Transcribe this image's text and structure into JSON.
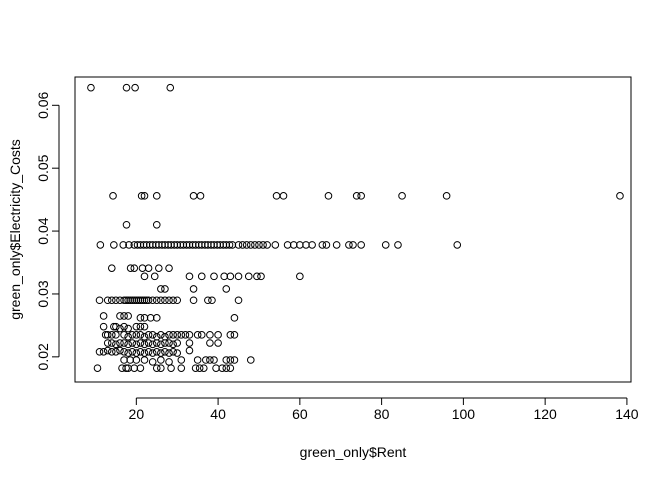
{
  "chart_data": {
    "type": "scatter",
    "xlabel": "green_only$Rent",
    "ylabel": "green_only$Electricity_Costs",
    "xlim": [
      5,
      141
    ],
    "ylim": [
      0.016,
      0.0645
    ],
    "x_ticks": [
      20,
      40,
      60,
      80,
      100,
      120,
      140
    ],
    "y_ticks": [
      0.02,
      0.03,
      0.04,
      0.05,
      0.06
    ],
    "x_tick_labels": [
      "20",
      "40",
      "60",
      "80",
      "100",
      "120",
      "140"
    ],
    "y_tick_labels": [
      "0.02",
      "0.03",
      "0.04",
      "0.05",
      "0.06"
    ],
    "grid": false,
    "marker": "open-circle",
    "point_color": "#000000",
    "points": [
      [
        8.9,
        0.0628
      ],
      [
        17.6,
        0.0628
      ],
      [
        19.7,
        0.0628
      ],
      [
        28.3,
        0.0628
      ],
      [
        14.3,
        0.0456
      ],
      [
        21.3,
        0.0456
      ],
      [
        22.0,
        0.0456
      ],
      [
        25.0,
        0.0456
      ],
      [
        34.0,
        0.0456
      ],
      [
        35.7,
        0.0456
      ],
      [
        54.3,
        0.0456
      ],
      [
        56.0,
        0.0456
      ],
      [
        67.0,
        0.0456
      ],
      [
        73.9,
        0.0456
      ],
      [
        75.0,
        0.0456
      ],
      [
        85.0,
        0.0456
      ],
      [
        95.9,
        0.0456
      ],
      [
        138.3,
        0.0456
      ],
      [
        17.6,
        0.041
      ],
      [
        25.0,
        0.041
      ],
      [
        11.2,
        0.0378
      ],
      [
        14.5,
        0.0378
      ],
      [
        16.8,
        0.0378
      ],
      [
        18.2,
        0.0378
      ],
      [
        19.5,
        0.0378
      ],
      [
        20.3,
        0.0378
      ],
      [
        21.0,
        0.0378
      ],
      [
        21.8,
        0.0378
      ],
      [
        22.5,
        0.0378
      ],
      [
        23.3,
        0.0378
      ],
      [
        24.0,
        0.0378
      ],
      [
        24.8,
        0.0378
      ],
      [
        25.5,
        0.0378
      ],
      [
        26.3,
        0.0378
      ],
      [
        27.0,
        0.0378
      ],
      [
        27.8,
        0.0378
      ],
      [
        28.5,
        0.0378
      ],
      [
        29.3,
        0.0378
      ],
      [
        30.0,
        0.0378
      ],
      [
        30.8,
        0.0378
      ],
      [
        31.5,
        0.0378
      ],
      [
        32.3,
        0.0378
      ],
      [
        33.0,
        0.0378
      ],
      [
        33.8,
        0.0378
      ],
      [
        34.5,
        0.0378
      ],
      [
        35.3,
        0.0378
      ],
      [
        36.0,
        0.0378
      ],
      [
        36.8,
        0.0378
      ],
      [
        37.5,
        0.0378
      ],
      [
        38.3,
        0.0378
      ],
      [
        39.0,
        0.0378
      ],
      [
        39.8,
        0.0378
      ],
      [
        40.5,
        0.0378
      ],
      [
        41.3,
        0.0378
      ],
      [
        42.0,
        0.0378
      ],
      [
        42.8,
        0.0378
      ],
      [
        43.5,
        0.0378
      ],
      [
        45.0,
        0.0378
      ],
      [
        46.0,
        0.0378
      ],
      [
        47.0,
        0.0378
      ],
      [
        48.0,
        0.0378
      ],
      [
        49.0,
        0.0378
      ],
      [
        50.0,
        0.0378
      ],
      [
        51.0,
        0.0378
      ],
      [
        52.0,
        0.0378
      ],
      [
        54.0,
        0.0378
      ],
      [
        57.0,
        0.0378
      ],
      [
        58.5,
        0.0378
      ],
      [
        60.0,
        0.0378
      ],
      [
        61.5,
        0.0378
      ],
      [
        63.0,
        0.0378
      ],
      [
        65.5,
        0.0378
      ],
      [
        66.5,
        0.0378
      ],
      [
        69.0,
        0.0378
      ],
      [
        72.0,
        0.0378
      ],
      [
        73.0,
        0.0378
      ],
      [
        75.0,
        0.0378
      ],
      [
        81.0,
        0.0378
      ],
      [
        84.0,
        0.0378
      ],
      [
        98.5,
        0.0378
      ],
      [
        14.0,
        0.0341
      ],
      [
        18.6,
        0.0341
      ],
      [
        19.5,
        0.0341
      ],
      [
        21.5,
        0.0341
      ],
      [
        23.0,
        0.0341
      ],
      [
        25.5,
        0.0341
      ],
      [
        28.0,
        0.0341
      ],
      [
        22.0,
        0.0328
      ],
      [
        24.5,
        0.0328
      ],
      [
        33.0,
        0.0328
      ],
      [
        36.0,
        0.0328
      ],
      [
        39.0,
        0.0328
      ],
      [
        41.5,
        0.0328
      ],
      [
        43.0,
        0.0328
      ],
      [
        45.0,
        0.0328
      ],
      [
        47.5,
        0.0328
      ],
      [
        49.5,
        0.0328
      ],
      [
        50.5,
        0.0328
      ],
      [
        60.0,
        0.0328
      ],
      [
        26.0,
        0.0308
      ],
      [
        27.0,
        0.0308
      ],
      [
        34.0,
        0.0308
      ],
      [
        42.0,
        0.0308
      ],
      [
        11.0,
        0.029
      ],
      [
        13.0,
        0.029
      ],
      [
        14.0,
        0.029
      ],
      [
        15.0,
        0.029
      ],
      [
        16.0,
        0.029
      ],
      [
        17.0,
        0.029
      ],
      [
        17.5,
        0.029
      ],
      [
        18.0,
        0.029
      ],
      [
        18.5,
        0.029
      ],
      [
        19.0,
        0.029
      ],
      [
        19.5,
        0.029
      ],
      [
        20.0,
        0.029
      ],
      [
        20.5,
        0.029
      ],
      [
        21.0,
        0.029
      ],
      [
        21.5,
        0.029
      ],
      [
        22.0,
        0.029
      ],
      [
        22.5,
        0.029
      ],
      [
        23.0,
        0.029
      ],
      [
        24.0,
        0.029
      ],
      [
        25.0,
        0.029
      ],
      [
        26.0,
        0.029
      ],
      [
        27.0,
        0.029
      ],
      [
        28.0,
        0.029
      ],
      [
        29.0,
        0.029
      ],
      [
        30.0,
        0.029
      ],
      [
        34.0,
        0.029
      ],
      [
        37.5,
        0.029
      ],
      [
        38.5,
        0.029
      ],
      [
        45.0,
        0.029
      ],
      [
        12.0,
        0.0265
      ],
      [
        16.0,
        0.0265
      ],
      [
        17.0,
        0.0265
      ],
      [
        18.0,
        0.0265
      ],
      [
        21.0,
        0.0262
      ],
      [
        22.0,
        0.0262
      ],
      [
        23.5,
        0.0262
      ],
      [
        25.0,
        0.0262
      ],
      [
        44.0,
        0.0262
      ],
      [
        12.0,
        0.0248
      ],
      [
        14.5,
        0.0248
      ],
      [
        15.0,
        0.0248
      ],
      [
        16.0,
        0.0245
      ],
      [
        17.0,
        0.0248
      ],
      [
        18.0,
        0.0245
      ],
      [
        20.0,
        0.0248
      ],
      [
        21.0,
        0.0248
      ],
      [
        22.0,
        0.0248
      ],
      [
        12.5,
        0.0235
      ],
      [
        13.0,
        0.0235
      ],
      [
        14.0,
        0.0235
      ],
      [
        15.0,
        0.0235
      ],
      [
        17.0,
        0.0235
      ],
      [
        18.0,
        0.0232
      ],
      [
        19.0,
        0.0235
      ],
      [
        20.0,
        0.0235
      ],
      [
        21.0,
        0.0235
      ],
      [
        22.0,
        0.0232
      ],
      [
        23.0,
        0.0235
      ],
      [
        24.0,
        0.0235
      ],
      [
        25.0,
        0.0232
      ],
      [
        26.0,
        0.0235
      ],
      [
        27.0,
        0.0232
      ],
      [
        28.0,
        0.0235
      ],
      [
        29.0,
        0.0235
      ],
      [
        30.0,
        0.0235
      ],
      [
        31.0,
        0.0235
      ],
      [
        32.0,
        0.0235
      ],
      [
        33.0,
        0.0235
      ],
      [
        35.0,
        0.0235
      ],
      [
        36.0,
        0.0235
      ],
      [
        38.0,
        0.0235
      ],
      [
        40.0,
        0.0235
      ],
      [
        43.0,
        0.0235
      ],
      [
        44.0,
        0.0235
      ],
      [
        13.0,
        0.0222
      ],
      [
        14.0,
        0.0222
      ],
      [
        15.0,
        0.022
      ],
      [
        16.0,
        0.0222
      ],
      [
        17.0,
        0.0222
      ],
      [
        18.0,
        0.022
      ],
      [
        19.0,
        0.0222
      ],
      [
        20.0,
        0.022
      ],
      [
        21.0,
        0.0222
      ],
      [
        22.0,
        0.022
      ],
      [
        23.0,
        0.0222
      ],
      [
        24.0,
        0.022
      ],
      [
        25.0,
        0.0222
      ],
      [
        26.0,
        0.022
      ],
      [
        27.0,
        0.0222
      ],
      [
        28.0,
        0.0222
      ],
      [
        29.0,
        0.022
      ],
      [
        30.0,
        0.0222
      ],
      [
        33.0,
        0.0222
      ],
      [
        38.0,
        0.0222
      ],
      [
        40.0,
        0.0222
      ],
      [
        11.0,
        0.0208
      ],
      [
        12.0,
        0.0208
      ],
      [
        13.0,
        0.021
      ],
      [
        14.0,
        0.0208
      ],
      [
        15.0,
        0.0208
      ],
      [
        16.0,
        0.021
      ],
      [
        17.0,
        0.0208
      ],
      [
        18.0,
        0.0206
      ],
      [
        19.0,
        0.0208
      ],
      [
        20.0,
        0.0206
      ],
      [
        21.0,
        0.0208
      ],
      [
        22.0,
        0.0206
      ],
      [
        23.0,
        0.0208
      ],
      [
        24.0,
        0.0206
      ],
      [
        25.0,
        0.0208
      ],
      [
        26.0,
        0.0206
      ],
      [
        27.0,
        0.0208
      ],
      [
        28.0,
        0.0206
      ],
      [
        29.0,
        0.0208
      ],
      [
        30.0,
        0.0206
      ],
      [
        33.0,
        0.021
      ],
      [
        17.0,
        0.0195
      ],
      [
        18.5,
        0.0195
      ],
      [
        20.0,
        0.0195
      ],
      [
        22.0,
        0.0195
      ],
      [
        24.0,
        0.0192
      ],
      [
        26.0,
        0.0195
      ],
      [
        28.0,
        0.0192
      ],
      [
        31.0,
        0.0195
      ],
      [
        35.0,
        0.0195
      ],
      [
        37.0,
        0.0195
      ],
      [
        38.0,
        0.0195
      ],
      [
        39.0,
        0.0195
      ],
      [
        42.0,
        0.0195
      ],
      [
        43.0,
        0.0195
      ],
      [
        44.0,
        0.0195
      ],
      [
        48.0,
        0.0195
      ],
      [
        10.5,
        0.0182
      ],
      [
        16.5,
        0.0182
      ],
      [
        17.5,
        0.0182
      ],
      [
        18.0,
        0.0182
      ],
      [
        19.5,
        0.0182
      ],
      [
        21.0,
        0.0182
      ],
      [
        25.0,
        0.0182
      ],
      [
        26.0,
        0.0182
      ],
      [
        28.5,
        0.0182
      ],
      [
        31.0,
        0.0182
      ],
      [
        34.5,
        0.0182
      ],
      [
        35.5,
        0.0182
      ],
      [
        36.5,
        0.0182
      ],
      [
        39.5,
        0.0182
      ],
      [
        41.0,
        0.0182
      ],
      [
        42.0,
        0.0182
      ],
      [
        43.0,
        0.0182
      ]
    ]
  }
}
